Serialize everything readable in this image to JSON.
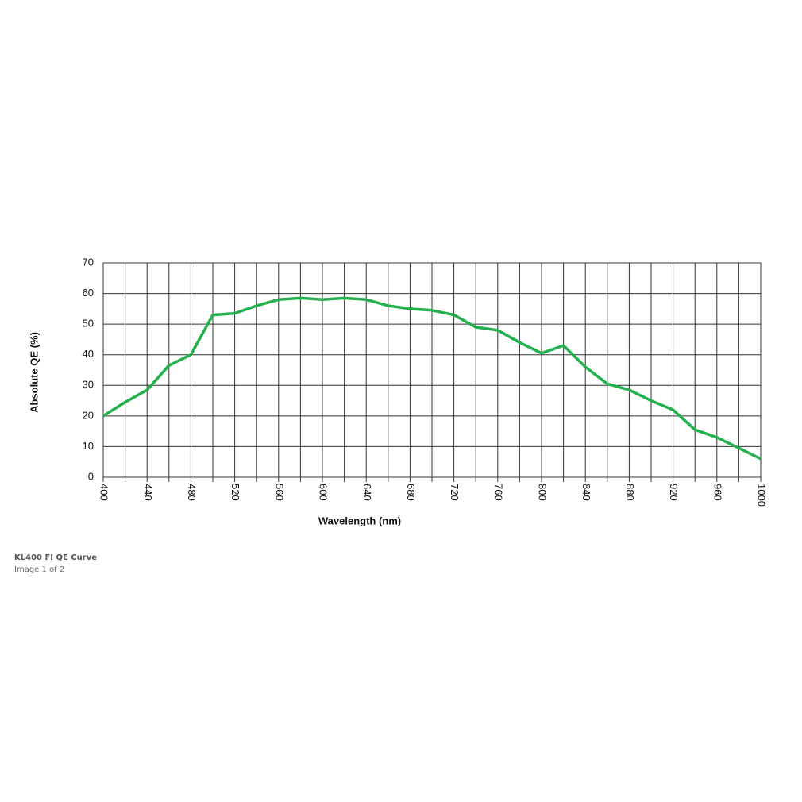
{
  "chart_data": {
    "type": "line",
    "x_label": "Wavelength (nm)",
    "y_label": "Absolute QE (%)",
    "x": [
      400,
      420,
      440,
      460,
      480,
      500,
      520,
      540,
      560,
      580,
      600,
      620,
      640,
      660,
      680,
      700,
      720,
      740,
      760,
      780,
      800,
      820,
      840,
      860,
      880,
      900,
      920,
      940,
      960,
      980,
      1000
    ],
    "series": [
      {
        "name": "QE",
        "color": "#23b14d",
        "values": [
          20,
          24.5,
          28.5,
          36.5,
          40,
          53,
          53.5,
          56,
          58,
          58.5,
          58,
          58.5,
          58,
          56,
          55,
          54.5,
          53,
          49,
          48,
          44,
          40.5,
          43,
          36,
          30.5,
          28.5,
          25,
          22,
          15.5,
          13,
          9.5,
          6
        ]
      }
    ],
    "xlim": [
      400,
      1000
    ],
    "xticks": [
      400,
      440,
      480,
      520,
      560,
      600,
      640,
      680,
      720,
      760,
      800,
      840,
      880,
      920,
      960,
      1000
    ],
    "x_minor_ticks": [
      420,
      460,
      500,
      540,
      580,
      620,
      660,
      700,
      740,
      780,
      820,
      860,
      900,
      940,
      980
    ],
    "ylim": [
      0,
      70
    ],
    "yticks": [
      0,
      10,
      20,
      30,
      40,
      50,
      60,
      70
    ],
    "grid": true
  },
  "caption": {
    "title": "KL400 FI QE Curve",
    "subtitle": "Image 1 of 2"
  }
}
